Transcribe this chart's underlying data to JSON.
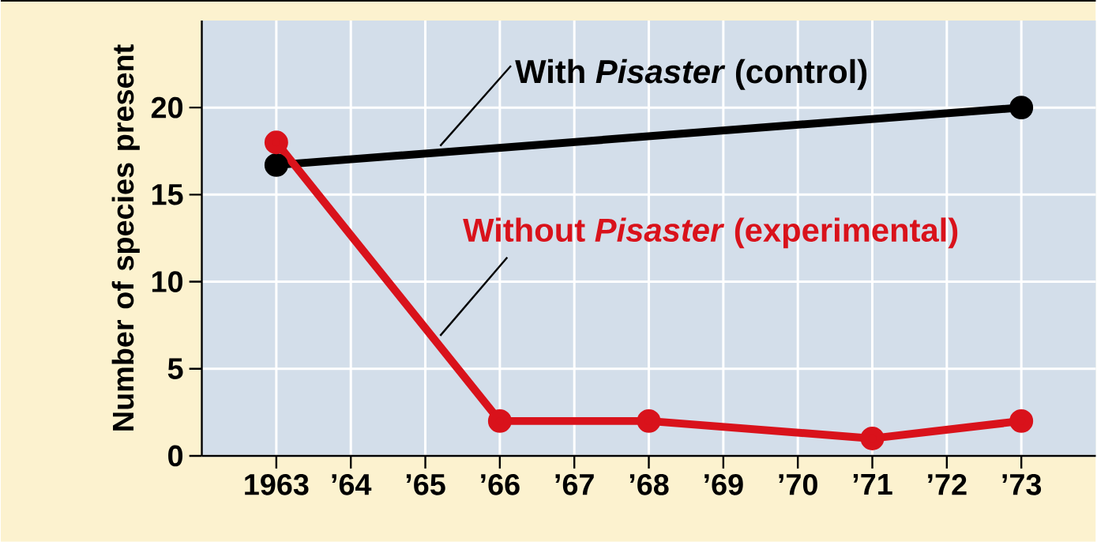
{
  "chart_data": {
    "type": "line",
    "ylabel": "Number of species present",
    "series": [
      {
        "name": "With *Pisaster* (control)",
        "color": "#000000",
        "x": [
          1963,
          1973
        ],
        "values": [
          16.7,
          20
        ]
      },
      {
        "name": "Without *Pisaster* (experimental)",
        "color": "#d9121b",
        "x": [
          1963,
          1966,
          1968,
          1971,
          1973
        ],
        "values": [
          18,
          2,
          2,
          1,
          2
        ]
      }
    ],
    "xlim": [
      1962,
      1974
    ],
    "ylim": [
      0,
      25
    ],
    "xticks": [
      {
        "value": 1963,
        "label": "1963"
      },
      {
        "value": 1964,
        "label": "’64"
      },
      {
        "value": 1965,
        "label": "’65"
      },
      {
        "value": 1966,
        "label": "’66"
      },
      {
        "value": 1967,
        "label": "’67"
      },
      {
        "value": 1968,
        "label": "’68"
      },
      {
        "value": 1969,
        "label": "’69"
      },
      {
        "value": 1970,
        "label": "’70"
      },
      {
        "value": 1971,
        "label": "’71"
      },
      {
        "value": 1972,
        "label": "’72"
      },
      {
        "value": 1973,
        "label": "’73"
      }
    ],
    "yticks": [
      0,
      5,
      10,
      15,
      20
    ],
    "grid": true,
    "legend": false,
    "marker": "circle",
    "line_style": "solid"
  }
}
